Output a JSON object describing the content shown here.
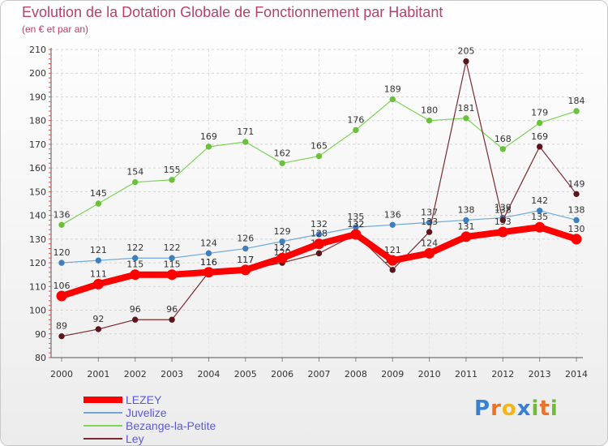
{
  "chart_data": {
    "type": "line",
    "title": "Evolution de la Dotation Globale de Fonctionnement par Habitant",
    "subtitle": "(en € et par an)",
    "xlabel": "",
    "ylabel": "",
    "ylim": [
      80,
      210
    ],
    "yticks": [
      80,
      90,
      100,
      110,
      120,
      130,
      140,
      150,
      160,
      170,
      180,
      190,
      200,
      210
    ],
    "categories": [
      "2000",
      "2001",
      "2002",
      "2003",
      "2004",
      "2005",
      "2006",
      "2007",
      "2008",
      "2009",
      "2010",
      "2011",
      "2012",
      "2013",
      "2014"
    ],
    "grid": "horizontal dashed",
    "legend_position": "bottom-left",
    "series": [
      {
        "name": "Bezange-la-Petite",
        "color": "#7fd35a",
        "marker": "#6ac13a",
        "values": [
          136,
          145,
          154,
          155,
          169,
          171,
          162,
          165,
          176,
          189,
          180,
          181,
          168,
          179,
          184
        ]
      },
      {
        "name": "Juvelize",
        "color": "#6fa8d6",
        "marker": "#3f7fc0",
        "values": [
          120,
          121,
          122,
          122,
          124,
          126,
          129,
          132,
          135,
          136,
          137,
          138,
          139,
          142,
          138
        ]
      },
      {
        "name": "Ley",
        "color": "#7a2a30",
        "marker": "#5a161c",
        "values": [
          89,
          92,
          96,
          96,
          116,
          117,
          120,
          124,
          132,
          117,
          133,
          205,
          138,
          169,
          149
        ]
      },
      {
        "name": "LEZEY",
        "color": "#ff0000",
        "marker": "#ff0000",
        "values": [
          106,
          111,
          115,
          115,
          116,
          117,
          122,
          128,
          132,
          121,
          124,
          131,
          133,
          135,
          130
        ]
      }
    ]
  },
  "legend": [
    {
      "label": "LEZEY",
      "color": "#ff0000"
    },
    {
      "label": "Juvelize",
      "color": "#6fa8d6"
    },
    {
      "label": "Bezange-la-Petite",
      "color": "#7fd35a"
    },
    {
      "label": "Ley",
      "color": "#7a2a30"
    }
  ],
  "logo": {
    "text": "Proxiti",
    "colors": [
      "#3a7fd0",
      "#e8722a",
      "#f2b61c",
      "#3a7fd0",
      "#6fba3a",
      "#e8722a",
      "#6fba3a"
    ]
  }
}
